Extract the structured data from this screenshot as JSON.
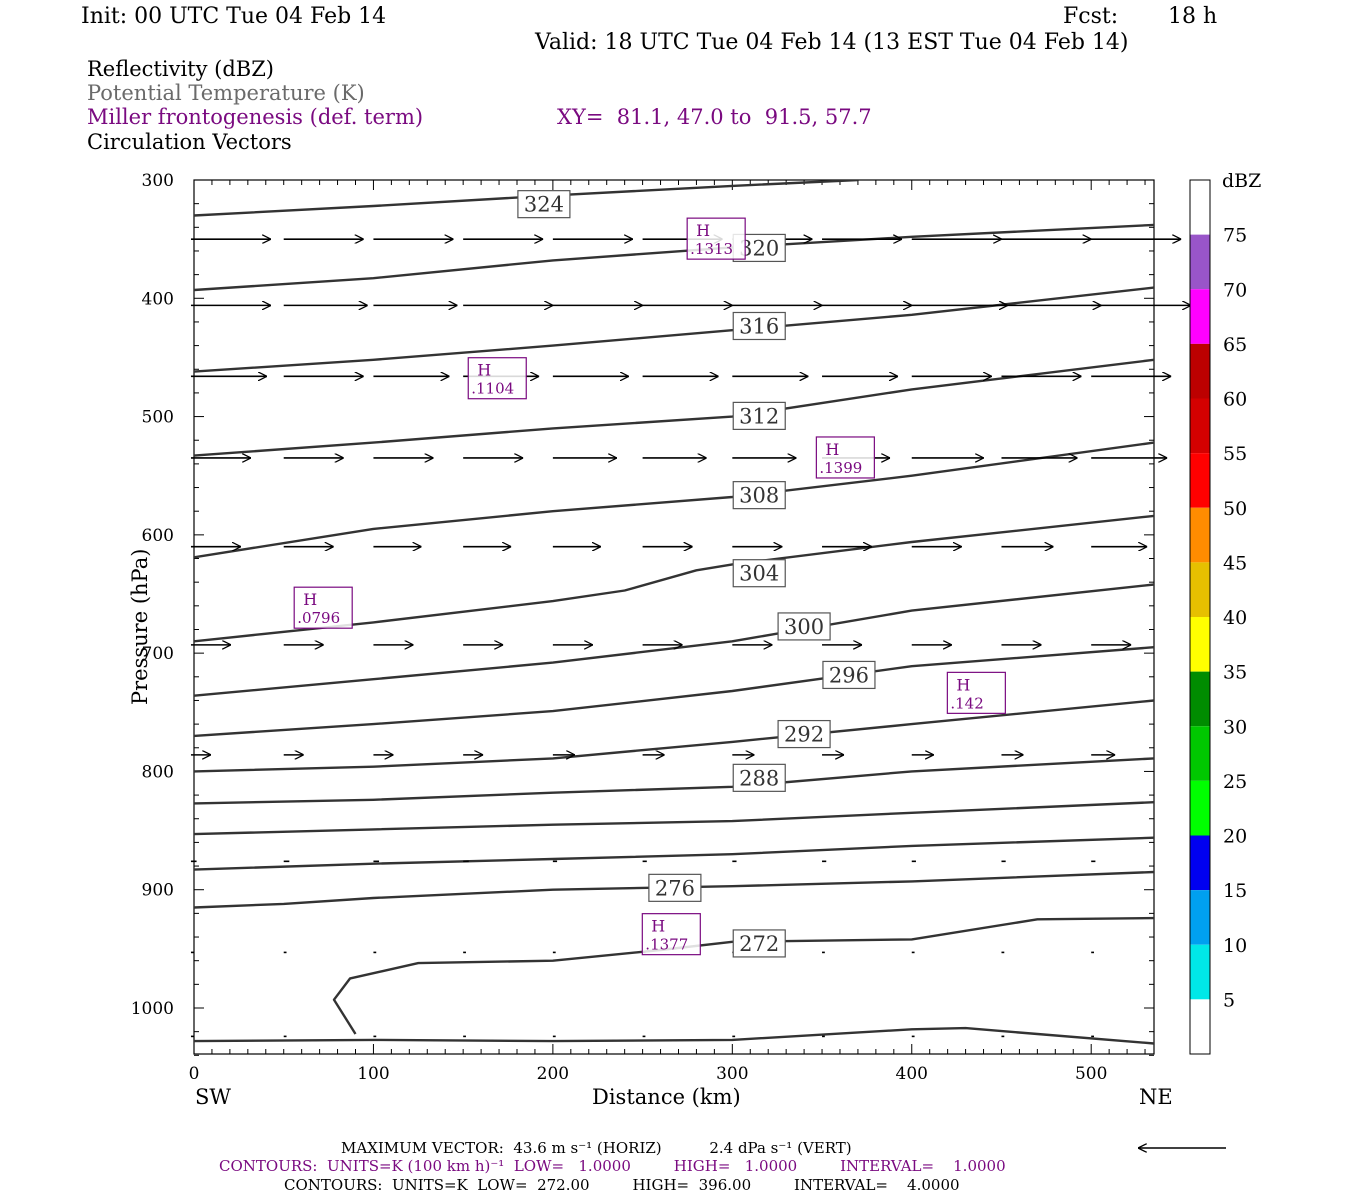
{
  "header": {
    "init": "Init: 00 UTC Tue 04 Feb 14",
    "fcst_label": "Fcst:",
    "fcst_value": "18 h",
    "valid": "Valid: 18 UTC Tue 04 Feb 14 (13 EST Tue 04 Feb 14)"
  },
  "fields": {
    "reflectivity": "Reflectivity (dBZ)",
    "theta": "Potential Temperature (K)",
    "frontogenesis": "Miller frontogenesis (def. term)",
    "xy": "XY=  81.1, 47.0 to  91.5, 57.7",
    "vectors": "Circulation Vectors"
  },
  "colors": {
    "purple": "#7a0a80",
    "gray": "#6a6a6a",
    "contour": "#333333"
  },
  "chart_data": {
    "type": "cross-section",
    "xlabel": "Distance (km)",
    "ylabel": "Pressure (hPa)",
    "xlim": [
      0,
      535
    ],
    "ylim": [
      1040,
      300
    ],
    "x_ticks": [
      0,
      100,
      200,
      300,
      400,
      500
    ],
    "x_tick_labels": [
      "0",
      "100",
      "200",
      "300",
      "400",
      "500"
    ],
    "y_ticks": [
      300,
      400,
      500,
      600,
      700,
      800,
      900,
      1000
    ],
    "y_tick_labels": [
      "300",
      "400",
      "500",
      "600",
      "700",
      "800",
      "900",
      "1000"
    ],
    "left_end_label": "SW",
    "right_end_label": "NE",
    "theta_contours": [
      {
        "value": 324,
        "label": "324",
        "points": [
          [
            0,
            330
          ],
          [
            100,
            322
          ],
          [
            200,
            313
          ],
          [
            300,
            305
          ],
          [
            370,
            300
          ]
        ],
        "label_at": [
          195,
          320
        ]
      },
      {
        "value": 320,
        "label": "320",
        "points": [
          [
            0,
            393
          ],
          [
            100,
            383
          ],
          [
            200,
            368
          ],
          [
            300,
            357
          ],
          [
            400,
            348
          ],
          [
            535,
            338
          ]
        ],
        "label_at": [
          315,
          357
        ]
      },
      {
        "value": 316,
        "label": "316",
        "points": [
          [
            0,
            462
          ],
          [
            100,
            452
          ],
          [
            200,
            440
          ],
          [
            300,
            427
          ],
          [
            400,
            414
          ],
          [
            535,
            391
          ]
        ],
        "label_at": [
          315,
          423
        ]
      },
      {
        "value": 312,
        "label": "312",
        "points": [
          [
            0,
            533
          ],
          [
            100,
            522
          ],
          [
            200,
            510
          ],
          [
            300,
            500
          ],
          [
            400,
            477
          ],
          [
            535,
            452
          ]
        ],
        "label_at": [
          315,
          499
        ]
      },
      {
        "value": 308,
        "label": "308",
        "points": [
          [
            0,
            619
          ],
          [
            100,
            595
          ],
          [
            200,
            580
          ],
          [
            300,
            568
          ],
          [
            400,
            550
          ],
          [
            535,
            522
          ]
        ],
        "label_at": [
          315,
          566
        ]
      },
      {
        "value": 304,
        "label": "304",
        "points": [
          [
            0,
            690
          ],
          [
            100,
            674
          ],
          [
            200,
            656
          ],
          [
            240,
            647
          ],
          [
            280,
            630
          ],
          [
            300,
            625
          ],
          [
            400,
            606
          ],
          [
            535,
            584
          ]
        ],
        "label_at": [
          315,
          632
        ]
      },
      {
        "value": 300,
        "label": "300",
        "points": [
          [
            0,
            736
          ],
          [
            100,
            722
          ],
          [
            200,
            708
          ],
          [
            300,
            690
          ],
          [
            400,
            664
          ],
          [
            535,
            642
          ]
        ],
        "label_at": [
          340,
          677
        ]
      },
      {
        "value": 296,
        "label": "296",
        "points": [
          [
            0,
            770
          ],
          [
            100,
            760
          ],
          [
            200,
            749
          ],
          [
            300,
            732
          ],
          [
            400,
            711
          ],
          [
            535,
            695
          ]
        ],
        "label_at": [
          365,
          718
        ]
      },
      {
        "value": 292,
        "label": "292",
        "points": [
          [
            0,
            800
          ],
          [
            100,
            796
          ],
          [
            200,
            789
          ],
          [
            300,
            775
          ],
          [
            400,
            760
          ],
          [
            535,
            740
          ]
        ],
        "label_at": [
          340,
          768
        ]
      },
      {
        "value": 288,
        "label": "288",
        "points": [
          [
            0,
            827
          ],
          [
            100,
            824
          ],
          [
            200,
            818
          ],
          [
            300,
            813
          ],
          [
            400,
            800
          ],
          [
            535,
            789
          ]
        ],
        "label_at": [
          315,
          805
        ]
      },
      {
        "value": 284,
        "label": "",
        "points": [
          [
            0,
            853
          ],
          [
            100,
            849
          ],
          [
            200,
            845
          ],
          [
            300,
            842
          ],
          [
            400,
            835
          ],
          [
            535,
            826
          ]
        ],
        "label_at": null
      },
      {
        "value": 280,
        "label": "",
        "points": [
          [
            0,
            883
          ],
          [
            100,
            878
          ],
          [
            200,
            874
          ],
          [
            300,
            870
          ],
          [
            400,
            863
          ],
          [
            535,
            856
          ]
        ],
        "label_at": null
      },
      {
        "value": 276,
        "label": "276",
        "points": [
          [
            0,
            915
          ],
          [
            50,
            912
          ],
          [
            100,
            907
          ],
          [
            200,
            900
          ],
          [
            300,
            897
          ],
          [
            400,
            893
          ],
          [
            535,
            885
          ]
        ],
        "label_at": [
          268,
          898
        ]
      },
      {
        "value": 272,
        "label": "272",
        "points": [
          [
            90,
            1022
          ],
          [
            78,
            993
          ],
          [
            87,
            975
          ],
          [
            125,
            962
          ],
          [
            200,
            960
          ],
          [
            260,
            951
          ],
          [
            300,
            944
          ],
          [
            400,
            942
          ],
          [
            470,
            925
          ],
          [
            535,
            924
          ]
        ],
        "label_at": [
          315,
          945
        ]
      },
      {
        "value": 268,
        "label": "",
        "points": [
          [
            0,
            1028
          ],
          [
            100,
            1027
          ],
          [
            200,
            1028
          ],
          [
            300,
            1027
          ],
          [
            400,
            1018
          ],
          [
            430,
            1017
          ],
          [
            470,
            1022
          ],
          [
            535,
            1030
          ]
        ],
        "label_at": null
      }
    ],
    "frontogenesis_maxima": [
      {
        "label": "H",
        "value": ".1313",
        "at": [
          291,
          350
        ]
      },
      {
        "label": "H",
        "value": ".1104",
        "at": [
          169,
          468
        ]
      },
      {
        "label": "H",
        "value": ".1399",
        "at": [
          363,
          535
        ]
      },
      {
        "label": "H",
        "value": ".0796",
        "at": [
          72,
          662
        ]
      },
      {
        "label": "H",
        "value": ".142",
        "at": [
          436,
          734
        ]
      },
      {
        "label": "H",
        "value": ".1377",
        "at": [
          266,
          938
        ]
      }
    ],
    "vector_rows": [
      {
        "p": 350,
        "len": [
          40,
          40,
          40,
          40,
          40,
          40,
          40,
          40,
          45,
          45,
          45,
          50
        ]
      },
      {
        "p": 406,
        "len": [
          40,
          42,
          42,
          45,
          45,
          45,
          45,
          45,
          48,
          50,
          50,
          45
        ]
      },
      {
        "p": 466,
        "len": [
          38,
          40,
          38,
          38,
          38,
          38,
          38,
          38,
          40,
          40,
          40,
          42
        ]
      },
      {
        "p": 535,
        "len": [
          30,
          30,
          30,
          30,
          32,
          32,
          32,
          34,
          36,
          38,
          38,
          38
        ]
      },
      {
        "p": 610,
        "len": [
          25,
          25,
          24,
          24,
          24,
          25,
          25,
          25,
          25,
          26,
          28,
          28
        ]
      },
      {
        "p": 693,
        "len": [
          20,
          20,
          20,
          20,
          20,
          20,
          20,
          20,
          20,
          20,
          20,
          20
        ]
      },
      {
        "p": 786,
        "len": [
          10,
          10,
          10,
          10,
          11,
          11,
          11,
          11,
          11,
          11,
          12,
          12
        ]
      },
      {
        "p": 876,
        "len": [
          4,
          4,
          4,
          4,
          3,
          3,
          3,
          3,
          3,
          3,
          3,
          4
        ]
      },
      {
        "p": 953,
        "len": [
          2,
          2,
          2,
          2,
          2,
          2,
          2,
          2,
          2,
          2,
          2,
          2
        ]
      },
      {
        "p": 1024,
        "len": [
          2,
          2,
          2,
          2,
          2,
          2,
          2,
          2,
          2,
          2,
          2,
          2
        ]
      }
    ],
    "colorbar": {
      "title": "dBZ",
      "labels": [
        "75",
        "70",
        "65",
        "60",
        "55",
        "50",
        "45",
        "40",
        "35",
        "30",
        "25",
        "20",
        "15",
        "10",
        "5"
      ],
      "colors": [
        "#ffffff",
        "#00e8e8",
        "#00a0f0",
        "#0000f0",
        "#00ff00",
        "#00c800",
        "#008c00",
        "#ffff00",
        "#e6c000",
        "#ff8c00",
        "#ff0000",
        "#d40000",
        "#bc0000",
        "#ff00ff",
        "#9955c9",
        "#ffffff"
      ]
    }
  },
  "footer": {
    "max_vector": "MAXIMUM VECTOR:  43.6 m s⁻¹ (HORIZ)          2.4 dPa s⁻¹ (VERT)",
    "contours_fronto": "CONTOURS:  UNITS=K (100 km h)⁻¹  LOW=   1.0000         HIGH=   1.0000         INTERVAL=    1.0000",
    "contours_theta": "CONTOURS:  UNITS=K  LOW=  272.00         HIGH=  396.00         INTERVAL=    4.0000"
  }
}
